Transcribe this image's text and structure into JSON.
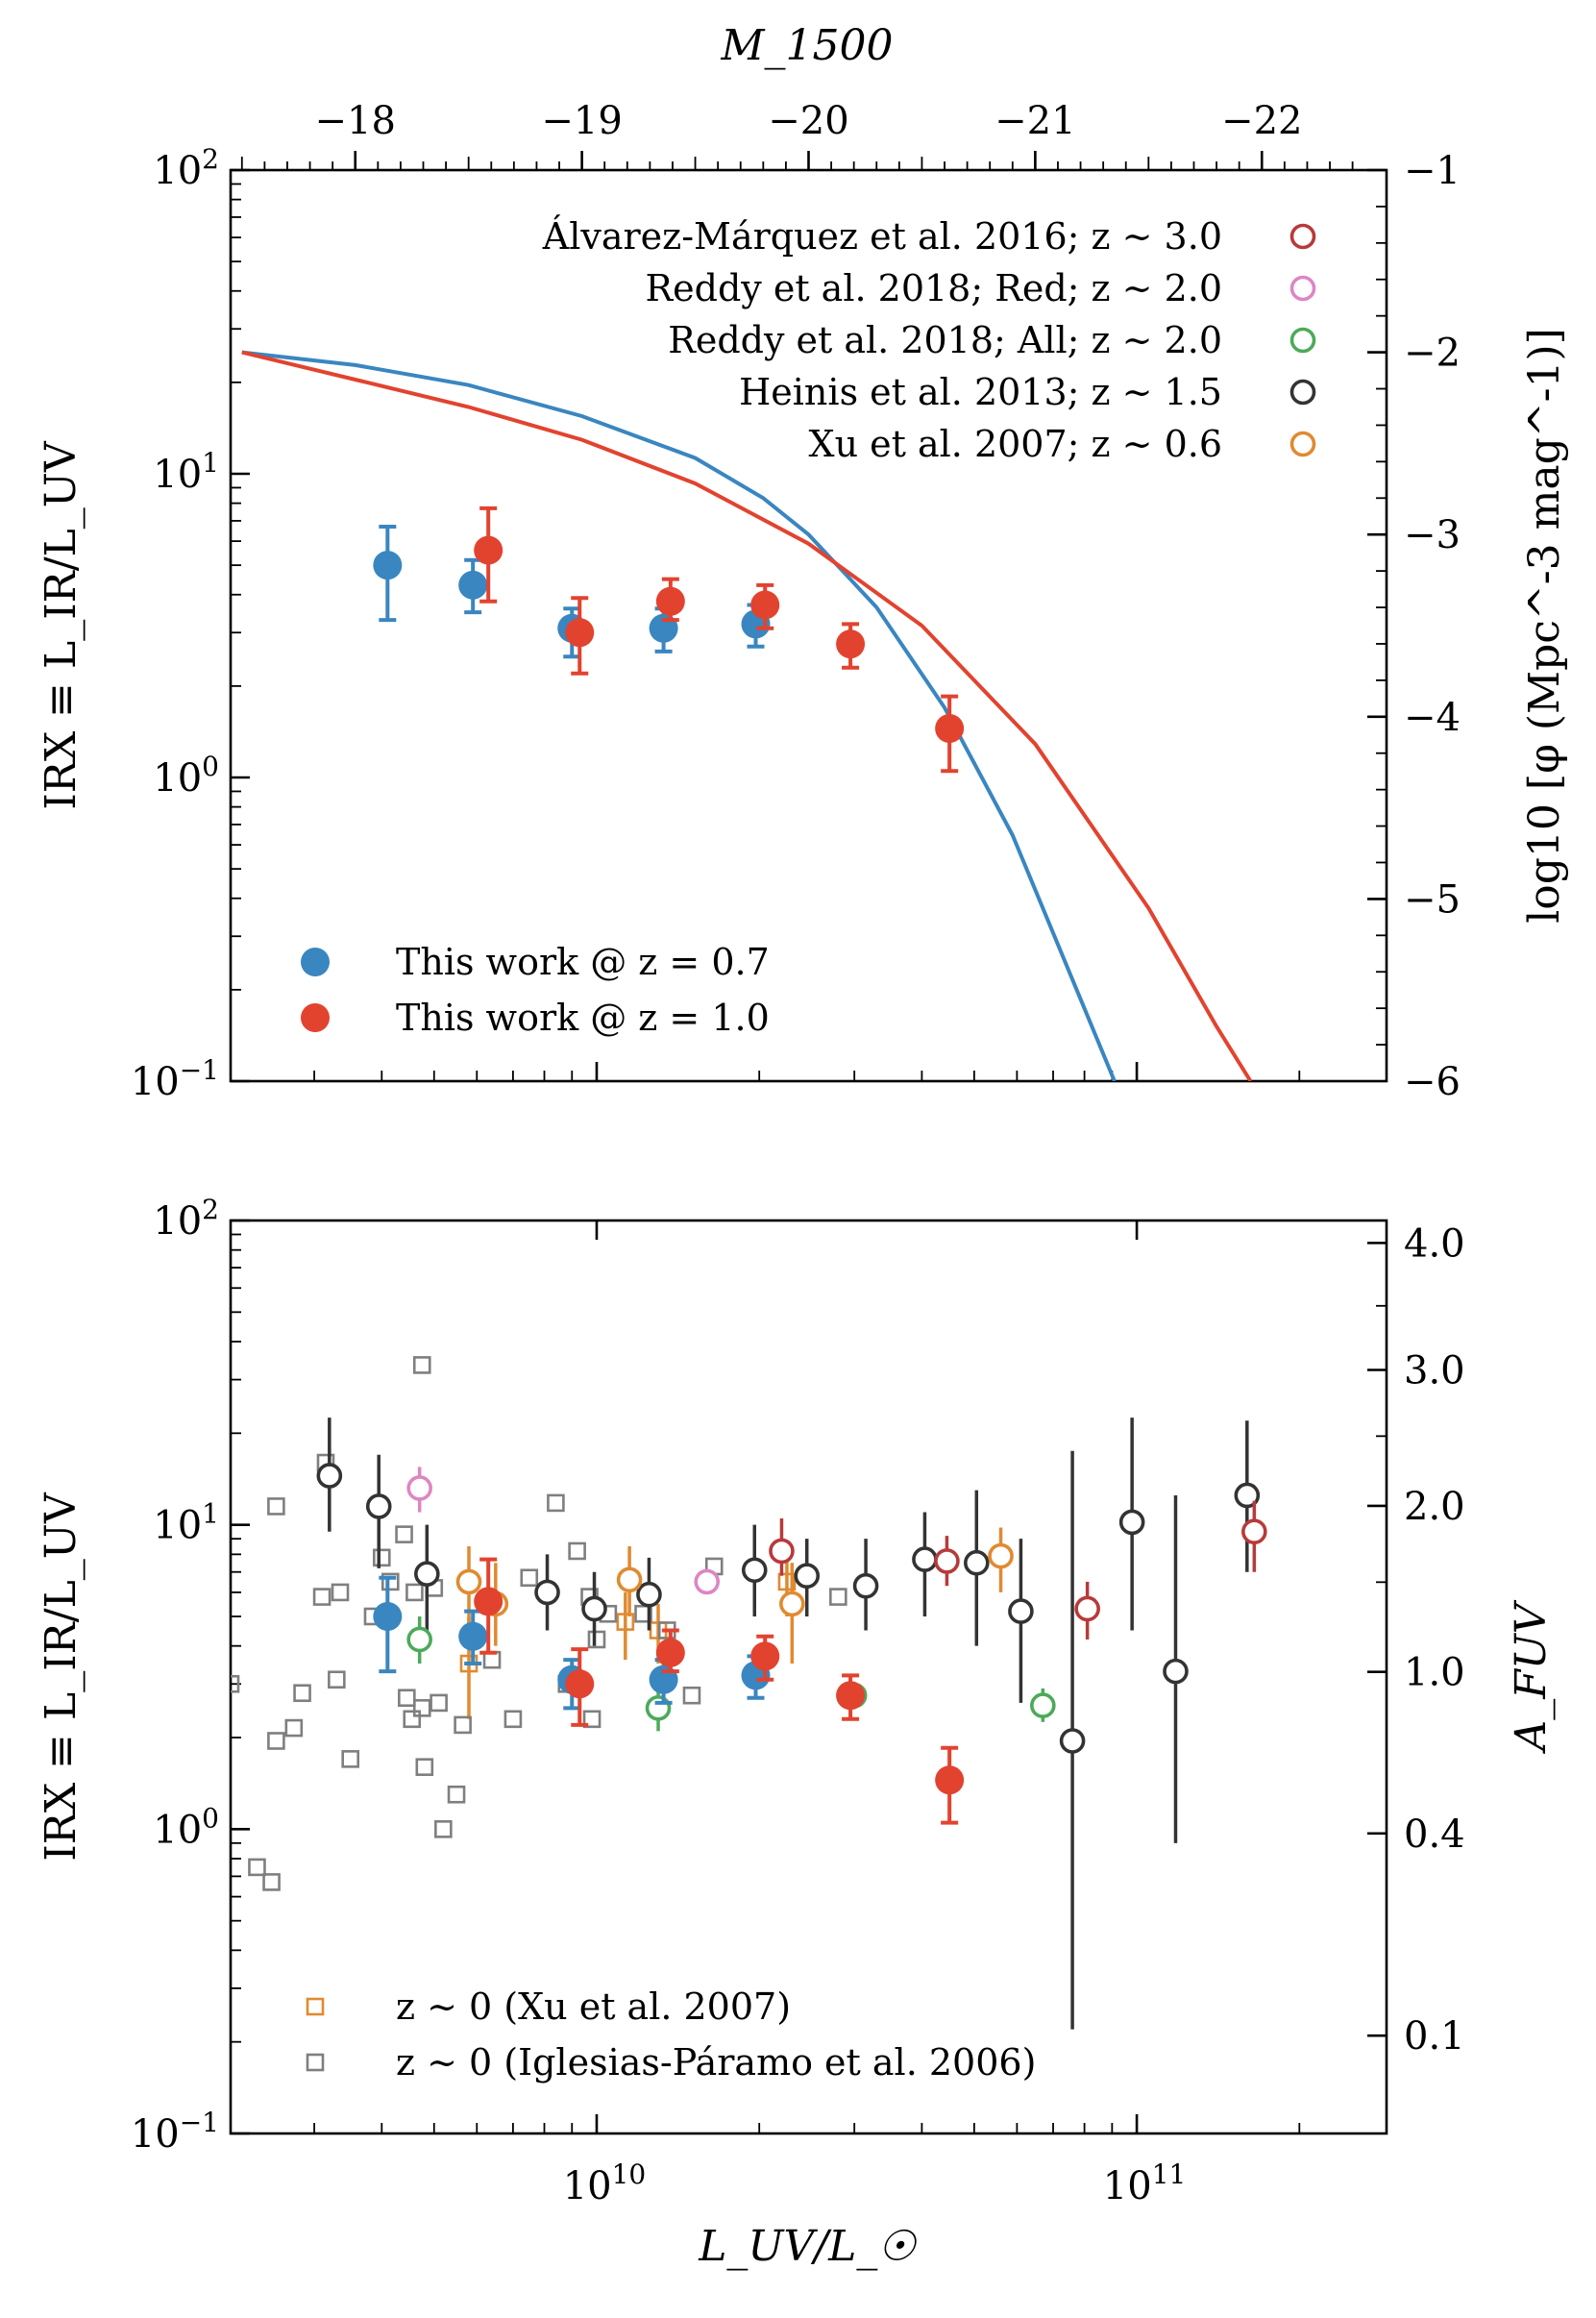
{
  "chart_data": [
    {
      "type": "scatter",
      "panel": "top",
      "title": "",
      "top_axis": {
        "label": "M_1500",
        "ticks": [
          -18,
          -19,
          -20,
          -21,
          -22
        ],
        "tick_labels": [
          "−18",
          "−19",
          "−20",
          "−21",
          "−22"
        ]
      },
      "left_axis": {
        "label": "IRX ≡ L_IR/L_UV",
        "scale": "log",
        "ylim": [
          0.1,
          100
        ],
        "tick_labels": [
          "10^-1",
          "10^0",
          "10^1",
          "10^2"
        ]
      },
      "right_axis": {
        "label": "log10 [φ (Mpc^-3 mag^-1)]",
        "ylim": [
          -6,
          -1
        ],
        "ticks": [
          -1,
          -2,
          -3,
          -4,
          -5,
          -6
        ],
        "tick_labels": [
          "−1",
          "−2",
          "−3",
          "−4",
          "−5",
          "−6"
        ]
      },
      "xlim_LUV": [
        2100000000.0,
        290000000000.0
      ],
      "series": [
        {
          "name": "This work @ z = 0.7",
          "label": "This work @ z = 0.7",
          "color": "#3a86c0",
          "marker": "filled-circle",
          "points": [
            {
              "x": 4100000000.0,
              "y": 5.0,
              "ylo": 3.3,
              "yhi": 6.7
            },
            {
              "x": 5900000000.0,
              "y": 4.3,
              "ylo": 3.5,
              "yhi": 5.2
            },
            {
              "x": 9000000000.0,
              "y": 3.1,
              "ylo": 2.5,
              "yhi": 3.6
            },
            {
              "x": 13300000000.0,
              "y": 3.1,
              "ylo": 2.6,
              "yhi": 3.6
            },
            {
              "x": 19700000000.0,
              "y": 3.2,
              "ylo": 2.7,
              "yhi": 3.7
            }
          ]
        },
        {
          "name": "This work @ z = 1.0",
          "label": "This work @ z = 1.0",
          "color": "#e2432f",
          "marker": "filled-circle",
          "points": [
            {
              "x": 6300000000.0,
              "y": 5.6,
              "ylo": 3.8,
              "yhi": 7.7
            },
            {
              "x": 9300000000.0,
              "y": 3.0,
              "ylo": 2.2,
              "yhi": 3.9
            },
            {
              "x": 13700000000.0,
              "y": 3.8,
              "ylo": 3.3,
              "yhi": 4.5
            },
            {
              "x": 20500000000.0,
              "y": 3.7,
              "ylo": 3.1,
              "yhi": 4.3
            },
            {
              "x": 29500000000.0,
              "y": 2.75,
              "ylo": 2.3,
              "yhi": 3.2
            },
            {
              "x": 45000000000.0,
              "y": 1.45,
              "ylo": 1.05,
              "yhi": 1.85
            }
          ]
        }
      ],
      "lf_curves": [
        {
          "name": "LF z = 0.7",
          "color": "#3a86c0",
          "M1500": [
            -17.5,
            -18.0,
            -18.5,
            -19.0,
            -19.5,
            -19.8,
            -20.0,
            -20.3,
            -20.6,
            -20.9,
            -21.2,
            -21.35
          ],
          "log_phi": [
            -2.0,
            -2.07,
            -2.18,
            -2.35,
            -2.58,
            -2.8,
            -3.0,
            -3.4,
            -3.95,
            -4.65,
            -5.55,
            -6.0
          ]
        },
        {
          "name": "LF z = 1.0",
          "color": "#e2432f",
          "M1500": [
            -17.5,
            -18.0,
            -18.5,
            -19.0,
            -19.5,
            -20.0,
            -20.5,
            -21.0,
            -21.5,
            -21.8,
            -21.95
          ],
          "log_phi": [
            -2.0,
            -2.15,
            -2.3,
            -2.48,
            -2.72,
            -3.05,
            -3.5,
            -4.15,
            -5.05,
            -5.7,
            -6.0
          ]
        }
      ],
      "legend_top_right": [
        {
          "text": "Álvarez-Márquez et al. 2016; z ∼ 3.0",
          "color": "#b83a3a"
        },
        {
          "text": "Reddy et al. 2018; Red; z ∼ 2.0",
          "color": "#dd86c4"
        },
        {
          "text": "Reddy et al. 2018; All; z ∼ 2.0",
          "color": "#4caa5a"
        },
        {
          "text": "Heinis et al. 2013; z ∼ 1.5",
          "color": "#333333"
        },
        {
          "text": "Xu et al. 2007; z ∼ 0.6",
          "color": "#e08a30"
        }
      ]
    },
    {
      "type": "scatter",
      "panel": "bottom",
      "title": "",
      "xlabel": "L_UV/L_☉",
      "x_scale": "log",
      "xlim": [
        2100000000.0,
        290000000000.0
      ],
      "x_tick_labels": [
        "10^10",
        "10^11"
      ],
      "left_axis": {
        "label": "IRX ≡ L_IR/L_UV",
        "scale": "log",
        "ylim": [
          0.1,
          100
        ],
        "tick_labels": [
          "10^-1",
          "10^0",
          "10^1",
          "10^2"
        ]
      },
      "right_axis": {
        "label": "A_FUV",
        "tick_labels": [
          "4.0",
          "3.0",
          "2.0",
          "1.0",
          "0.4",
          "0.1"
        ]
      },
      "series": [
        {
          "name": "This work @ z = 0.7",
          "color": "#3a86c0",
          "marker": "filled-circle",
          "points": [
            {
              "x": 4100000000.0,
              "y": 5.0,
              "ylo": 3.3,
              "yhi": 6.7
            },
            {
              "x": 5900000000.0,
              "y": 4.3,
              "ylo": 3.5,
              "yhi": 5.2
            },
            {
              "x": 9000000000.0,
              "y": 3.1,
              "ylo": 2.5,
              "yhi": 3.6
            },
            {
              "x": 13300000000.0,
              "y": 3.1,
              "ylo": 2.6,
              "yhi": 3.6
            },
            {
              "x": 19700000000.0,
              "y": 3.2,
              "ylo": 2.7,
              "yhi": 3.7
            }
          ]
        },
        {
          "name": "This work @ z = 1.0",
          "color": "#e2432f",
          "marker": "filled-circle",
          "points": [
            {
              "x": 6300000000.0,
              "y": 5.6,
              "ylo": 3.8,
              "yhi": 7.7
            },
            {
              "x": 9300000000.0,
              "y": 3.0,
              "ylo": 2.2,
              "yhi": 3.9
            },
            {
              "x": 13700000000.0,
              "y": 3.8,
              "ylo": 3.3,
              "yhi": 4.5
            },
            {
              "x": 20500000000.0,
              "y": 3.7,
              "ylo": 3.1,
              "yhi": 4.3
            },
            {
              "x": 29500000000.0,
              "y": 2.75,
              "ylo": 2.3,
              "yhi": 3.2
            },
            {
              "x": 45000000000.0,
              "y": 1.45,
              "ylo": 1.05,
              "yhi": 1.85
            }
          ]
        },
        {
          "name": "Heinis et al. 2013; z ∼ 1.5",
          "color": "#333333",
          "marker": "open-circle",
          "points": [
            {
              "x": 3200000000.0,
              "y": 14.5,
              "ylo": 9.5,
              "yhi": 22.5
            },
            {
              "x": 3950000000.0,
              "y": 11.5,
              "ylo": 7.2,
              "yhi": 17.0
            },
            {
              "x": 4850000000.0,
              "y": 6.9,
              "ylo": 4.5,
              "yhi": 10.0
            },
            {
              "x": 8100000000.0,
              "y": 6.0,
              "ylo": 4.5,
              "yhi": 8.0
            },
            {
              "x": 9900000000.0,
              "y": 5.3,
              "ylo": 4.0,
              "yhi": 7.0
            },
            {
              "x": 12500000000.0,
              "y": 5.9,
              "ylo": 4.5,
              "yhi": 7.8
            },
            {
              "x": 19600000000.0,
              "y": 7.1,
              "ylo": 5.0,
              "yhi": 10.0
            },
            {
              "x": 24500000000.0,
              "y": 6.8,
              "ylo": 5.0,
              "yhi": 9.0
            },
            {
              "x": 31500000000.0,
              "y": 6.3,
              "ylo": 4.5,
              "yhi": 9.0
            },
            {
              "x": 40500000000.0,
              "y": 7.7,
              "ylo": 5.0,
              "yhi": 11.0
            },
            {
              "x": 50500000000.0,
              "y": 7.5,
              "ylo": 4.0,
              "yhi": 13.0
            },
            {
              "x": 61000000000.0,
              "y": 5.2,
              "ylo": 2.6,
              "yhi": 9.0
            },
            {
              "x": 76000000000.0,
              "y": 1.95,
              "ylo": 0.22,
              "yhi": 17.5
            },
            {
              "x": 98000000000.0,
              "y": 10.2,
              "ylo": 4.5,
              "yhi": 22.5
            },
            {
              "x": 118000000000.0,
              "y": 3.3,
              "ylo": 0.9,
              "yhi": 12.5
            },
            {
              "x": 160000000000.0,
              "y": 12.5,
              "ylo": 7.0,
              "yhi": 22.0
            }
          ]
        },
        {
          "name": "Álvarez-Márquez et al. 2016; z ∼ 3.0",
          "color": "#b83a3a",
          "marker": "open-circle",
          "points": [
            {
              "x": 22000000000.0,
              "y": 8.2,
              "ylo": 6.8,
              "yhi": 10.5
            },
            {
              "x": 44500000000.0,
              "y": 7.6,
              "ylo": 6.3,
              "yhi": 9.2
            },
            {
              "x": 81000000000.0,
              "y": 5.3,
              "ylo": 4.2,
              "yhi": 6.5
            },
            {
              "x": 165000000000.0,
              "y": 9.5,
              "ylo": 7.0,
              "yhi": 12.0
            }
          ]
        },
        {
          "name": "Reddy et al. 2018; Red; z ∼ 2.0",
          "color": "#dd86c4",
          "marker": "open-circle",
          "points": [
            {
              "x": 4700000000.0,
              "y": 13.2,
              "ylo": 11.0,
              "yhi": 15.5
            },
            {
              "x": 16000000000.0,
              "y": 6.5,
              "ylo": 6.0,
              "yhi": 7.0
            }
          ]
        },
        {
          "name": "Reddy et al. 2018; All; z ∼ 2.0",
          "color": "#4caa5a",
          "marker": "open-circle",
          "points": [
            {
              "x": 4700000000.0,
              "y": 4.2,
              "ylo": 3.5,
              "yhi": 5.0
            },
            {
              "x": 13000000000.0,
              "y": 2.5,
              "ylo": 2.1,
              "yhi": 2.9
            },
            {
              "x": 30000000000.0,
              "y": 2.75,
              "ylo": 2.5,
              "yhi": 3.0
            },
            {
              "x": 67000000000.0,
              "y": 2.55,
              "ylo": 2.25,
              "yhi": 2.9
            }
          ]
        },
        {
          "name": "Xu et al. 2007; z ∼ 0.6",
          "color": "#e08a30",
          "marker": "open-circle",
          "points": [
            {
              "x": 5800000000.0,
              "y": 6.5,
              "ylo": 4.5,
              "yhi": 8.5
            },
            {
              "x": 6500000000.0,
              "y": 5.5,
              "ylo": 4.0,
              "yhi": 7.5
            },
            {
              "x": 11500000000.0,
              "y": 6.6,
              "ylo": 5.0,
              "yhi": 8.5
            },
            {
              "x": 23000000000.0,
              "y": 5.5,
              "ylo": 3.5,
              "yhi": 7.5
            },
            {
              "x": 56000000000.0,
              "y": 7.9,
              "ylo": 6.0,
              "yhi": 9.8
            }
          ]
        },
        {
          "name": "z ∼ 0 (Xu et al. 2007)",
          "label": "z ∼ 0 (Xu et al. 2007)",
          "color": "#e08a30",
          "marker": "open-square",
          "points": [
            {
              "x": 5800000000.0,
              "y": 3.5,
              "ylo": 2.3,
              "yhi": 5.0
            },
            {
              "x": 11300000000.0,
              "y": 4.8,
              "ylo": 3.6,
              "yhi": 6.0
            },
            {
              "x": 13000000000.0,
              "y": 4.5,
              "ylo": 3.5,
              "yhi": 5.5
            },
            {
              "x": 22500000000.0,
              "y": 6.5,
              "ylo": 5.0,
              "yhi": 8.0
            }
          ]
        },
        {
          "name": "z ∼ 0 (Iglesias-Páramo et al. 2006)",
          "label": "z ∼ 0 (Iglesias-Páramo et al. 2006)",
          "color": "#7f7f7f",
          "marker": "open-square",
          "points": [
            {
              "x": 2100000000.0,
              "y": 3.0
            },
            {
              "x": 2350000000.0,
              "y": 0.75
            },
            {
              "x": 2500000000.0,
              "y": 0.67
            },
            {
              "x": 2550000000.0,
              "y": 11.5
            },
            {
              "x": 2550000000.0,
              "y": 1.95
            },
            {
              "x": 2750000000.0,
              "y": 2.15
            },
            {
              "x": 2850000000.0,
              "y": 2.8
            },
            {
              "x": 3100000000.0,
              "y": 5.8
            },
            {
              "x": 3150000000.0,
              "y": 16.0
            },
            {
              "x": 3300000000.0,
              "y": 3.1
            },
            {
              "x": 3350000000.0,
              "y": 6.0
            },
            {
              "x": 3500000000.0,
              "y": 1.7
            },
            {
              "x": 3850000000.0,
              "y": 5.0
            },
            {
              "x": 4000000000.0,
              "y": 7.8
            },
            {
              "x": 4150000000.0,
              "y": 6.5
            },
            {
              "x": 4400000000.0,
              "y": 9.3
            },
            {
              "x": 4450000000.0,
              "y": 2.7
            },
            {
              "x": 4550000000.0,
              "y": 2.3
            },
            {
              "x": 4600000000.0,
              "y": 6.0
            },
            {
              "x": 4750000000.0,
              "y": 33.5
            },
            {
              "x": 4750000000.0,
              "y": 2.5
            },
            {
              "x": 4800000000.0,
              "y": 1.6
            },
            {
              "x": 5000000000.0,
              "y": 6.2
            },
            {
              "x": 5100000000.0,
              "y": 2.6
            },
            {
              "x": 5200000000.0,
              "y": 1.0
            },
            {
              "x": 5500000000.0,
              "y": 1.3
            },
            {
              "x": 5650000000.0,
              "y": 2.2
            },
            {
              "x": 6400000000.0,
              "y": 3.6
            },
            {
              "x": 7000000000.0,
              "y": 2.3
            },
            {
              "x": 7500000000.0,
              "y": 6.7
            },
            {
              "x": 8400000000.0,
              "y": 11.8
            },
            {
              "x": 8800000000.0,
              "y": 3.0
            },
            {
              "x": 9200000000.0,
              "y": 8.2
            },
            {
              "x": 9700000000.0,
              "y": 5.8
            },
            {
              "x": 9800000000.0,
              "y": 2.3
            },
            {
              "x": 10000000000.0,
              "y": 4.2
            },
            {
              "x": 10500000000.0,
              "y": 5.1
            },
            {
              "x": 12200000000.0,
              "y": 5.1
            },
            {
              "x": 13500000000.0,
              "y": 4.5
            },
            {
              "x": 15000000000.0,
              "y": 2.75
            },
            {
              "x": 16500000000.0,
              "y": 7.3
            },
            {
              "x": 28000000000.0,
              "y": 5.8
            }
          ]
        }
      ],
      "legend": [
        {
          "text": "z ∼ 0 (Xu et al. 2007)",
          "color": "#e08a30"
        },
        {
          "text": "z ∼ 0 (Iglesias-Páramo et al. 2006)",
          "color": "#7f7f7f"
        }
      ]
    }
  ]
}
